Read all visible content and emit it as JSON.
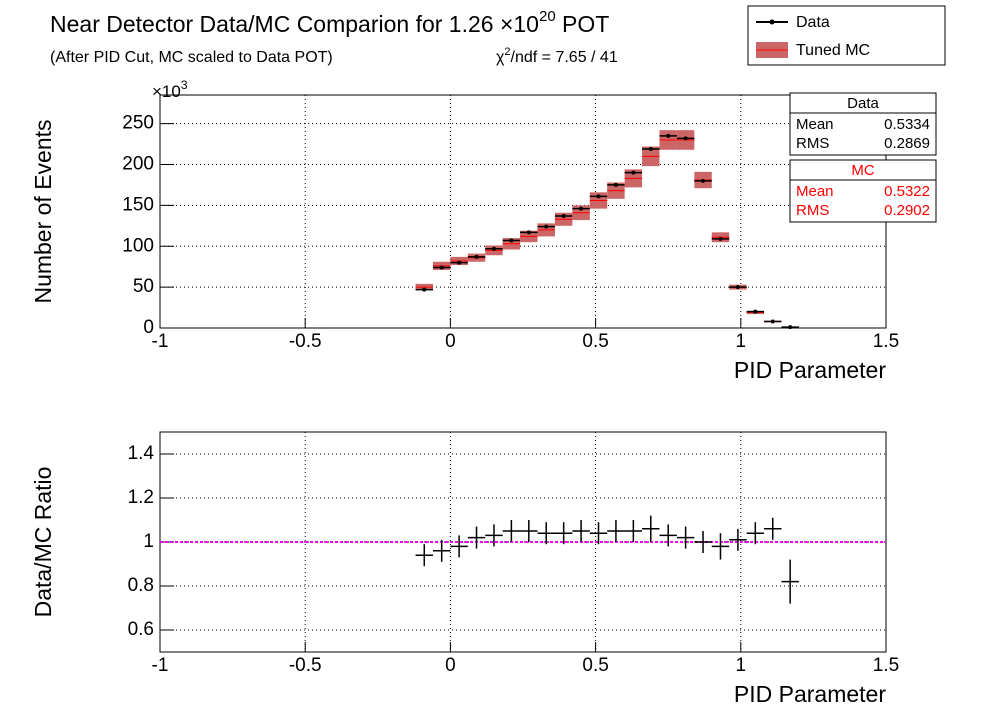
{
  "header": {
    "title": "Near Detector Data/MC Comparion for 1.26 ×10",
    "title_sup": "20",
    "title_end": " POT",
    "subtitle": "(After PID Cut, MC scaled to Data POT)",
    "chi": "χ",
    "chi_sup": "2",
    "chi_end": "/ndf = 7.65 / 41"
  },
  "legend": {
    "data": "Data",
    "mc": "Tuned MC"
  },
  "stats": [
    {
      "title": "Data",
      "mean_label": "Mean",
      "mean": "0.5334",
      "rms_label": "RMS",
      "rms": "0.2869",
      "color": "#000000"
    },
    {
      "title": "MC",
      "mean_label": "Mean",
      "mean": "0.5322",
      "rms_label": "RMS",
      "rms": "0.2902",
      "color": "#ff0000"
    }
  ],
  "chart_data": [
    {
      "type": "histogram-compare",
      "y_label": "Number of Events",
      "x_label": "PID Parameter",
      "y_multiplier": "×10",
      "y_multiplier_sup": "3",
      "x": [
        -0.09,
        -0.03,
        0.03,
        0.09,
        0.15,
        0.21,
        0.27,
        0.33,
        0.39,
        0.45,
        0.51,
        0.57,
        0.63,
        0.69,
        0.75,
        0.81,
        0.87,
        0.93,
        0.99,
        1.05,
        1.11,
        1.17
      ],
      "series": [
        {
          "name": "Data",
          "color": "#000000",
          "values": [
            47,
            74,
            80,
            87,
            97,
            107,
            117,
            124,
            137,
            146,
            161,
            175,
            190,
            219,
            235,
            232,
            180,
            109,
            50,
            20,
            8,
            1
          ]
        },
        {
          "name": "Tuned MC",
          "color": "#cc3333",
          "values": [
            50,
            76,
            82,
            86,
            95,
            103,
            112,
            120,
            133,
            141,
            156,
            168,
            183,
            210,
            230,
            230,
            181,
            111,
            50,
            19,
            8,
            1.2
          ],
          "errors": [
            4,
            5,
            5,
            5,
            6,
            7,
            7,
            8,
            8,
            9,
            10,
            10,
            11,
            12,
            12,
            12,
            10,
            6,
            3,
            2,
            1,
            0.5
          ]
        }
      ],
      "xlim": [
        -1,
        1.5
      ],
      "xticks": [
        -1,
        -0.5,
        0,
        0.5,
        1,
        1.5
      ],
      "ylim": [
        0,
        285
      ],
      "yticks": [
        0,
        50,
        100,
        150,
        200,
        250
      ],
      "grid": true
    },
    {
      "type": "ratio",
      "y_label": "Data/MC Ratio",
      "x_label": "PID Parameter",
      "x": [
        -0.09,
        -0.03,
        0.03,
        0.09,
        0.15,
        0.21,
        0.27,
        0.33,
        0.39,
        0.45,
        0.51,
        0.57,
        0.63,
        0.69,
        0.75,
        0.81,
        0.87,
        0.93,
        0.99,
        1.05,
        1.11,
        1.17
      ],
      "values": [
        0.94,
        0.96,
        0.98,
        1.02,
        1.03,
        1.05,
        1.05,
        1.04,
        1.04,
        1.05,
        1.04,
        1.05,
        1.05,
        1.06,
        1.03,
        1.02,
        1.0,
        0.98,
        1.01,
        1.04,
        1.06,
        0.82
      ],
      "errors": [
        0.05,
        0.05,
        0.05,
        0.05,
        0.05,
        0.05,
        0.05,
        0.05,
        0.05,
        0.05,
        0.05,
        0.05,
        0.05,
        0.06,
        0.05,
        0.05,
        0.05,
        0.06,
        0.05,
        0.05,
        0.05,
        0.1
      ],
      "color": "#000000",
      "ref_line": 1,
      "ref_color": "#ff00ff",
      "xlim": [
        -1,
        1.5
      ],
      "xticks": [
        -1,
        -0.5,
        0,
        0.5,
        1,
        1.5
      ],
      "ylim": [
        0.5,
        1.5
      ],
      "yticks": [
        0.6,
        0.8,
        1,
        1.2,
        1.4
      ],
      "grid": true
    }
  ]
}
